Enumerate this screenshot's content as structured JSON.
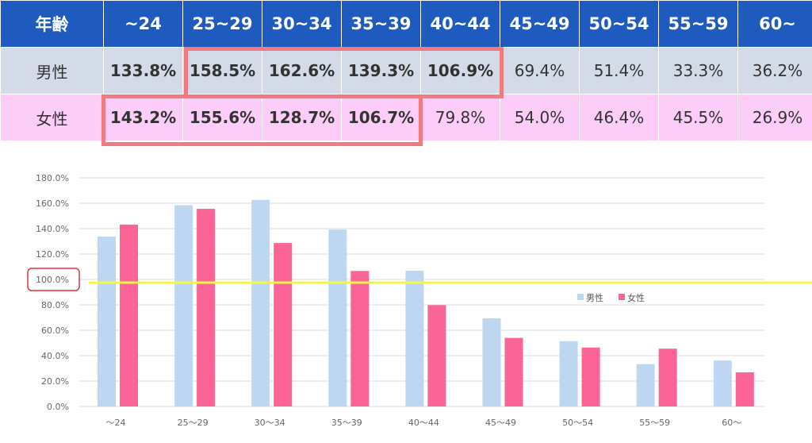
{
  "table": {
    "header_label": "年齢",
    "age_groups": [
      "~24",
      "25~29",
      "30~34",
      "35~39",
      "40~44",
      "45~49",
      "50~54",
      "55~59",
      "60~"
    ],
    "rows": [
      {
        "label": "男性",
        "values": [
          "133.8%",
          "158.5%",
          "162.6%",
          "139.3%",
          "106.9%",
          "69.4%",
          "51.4%",
          "33.3%",
          "36.2%"
        ],
        "bold": [
          true,
          true,
          true,
          true,
          true,
          false,
          false,
          false,
          false
        ]
      },
      {
        "label": "女性",
        "values": [
          "143.2%",
          "155.6%",
          "128.7%",
          "106.7%",
          "79.8%",
          "54.0%",
          "46.4%",
          "45.5%",
          "26.9%"
        ],
        "bold": [
          true,
          true,
          true,
          true,
          false,
          false,
          false,
          false,
          false
        ]
      }
    ],
    "highlight_color": "#f07a80",
    "header_color": "#1f5bbf"
  },
  "chart_data": {
    "type": "bar",
    "categories": [
      "～24",
      "25～29",
      "30～34",
      "35～39",
      "40～44",
      "45～49",
      "50～54",
      "55～59",
      "60～"
    ],
    "series": [
      {
        "name": "男性",
        "color": "#bdd7f2",
        "values": [
          133.8,
          158.5,
          162.6,
          139.3,
          106.9,
          69.4,
          51.4,
          33.3,
          36.2
        ]
      },
      {
        "name": "女性",
        "color": "#fb6496",
        "values": [
          143.2,
          155.6,
          128.7,
          106.7,
          79.8,
          54.0,
          46.4,
          45.5,
          26.9
        ]
      }
    ],
    "ylim": [
      0,
      180
    ],
    "yticks": [
      "0.0%",
      "20.0%",
      "40.0%",
      "60.0%",
      "80.0%",
      "100.0%",
      "120.0%",
      "140.0%",
      "160.0%",
      "180.0%"
    ],
    "grid": true,
    "legend": "right-middle",
    "reference_line": {
      "value": 100,
      "color": "#f5f542"
    },
    "highlighted_tick": "100.0%"
  }
}
